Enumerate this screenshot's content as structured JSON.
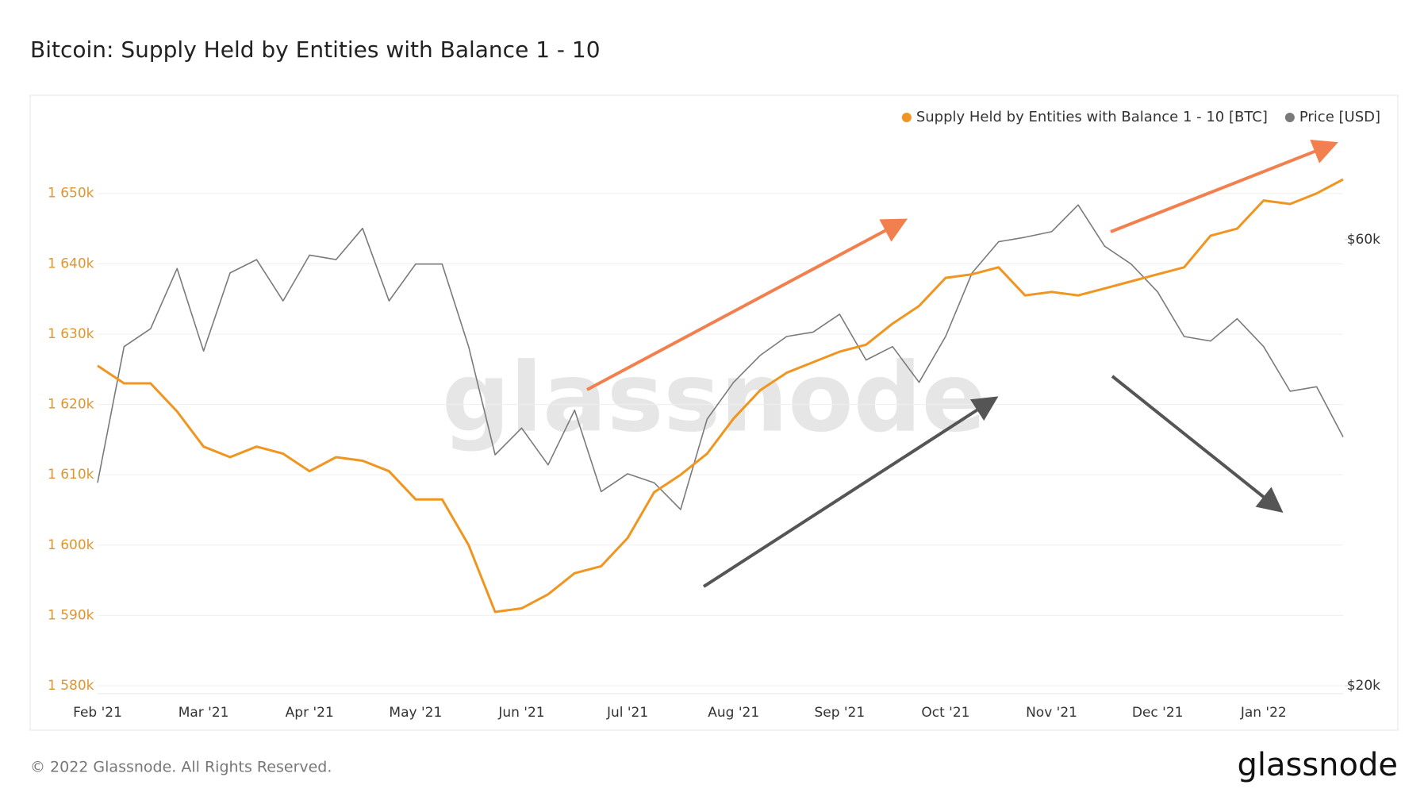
{
  "chart_data": {
    "type": "line",
    "title": "Bitcoin: Supply Held by Entities with Balance 1 - 10",
    "watermark": "glassnode",
    "footer": "© 2022 Glassnode. All Rights Reserved.",
    "logo": "glassnode",
    "categories": [
      "Feb '21",
      null,
      null,
      null,
      "Mar '21",
      null,
      null,
      null,
      "Apr '21",
      null,
      null,
      null,
      "May '21",
      null,
      null,
      null,
      "Jun '21",
      null,
      null,
      null,
      "Jul '21",
      null,
      null,
      null,
      "Aug '21",
      null,
      null,
      null,
      "Sep '21",
      null,
      null,
      null,
      "Oct '21",
      null,
      null,
      null,
      "Nov '21",
      null,
      null,
      null,
      "Dec '21",
      null,
      null,
      null,
      "Jan '22",
      null,
      null,
      null
    ],
    "series": [
      {
        "name": "Supply Held by Entities with Balance 1 - 10 [BTC]",
        "color": "#f0951f",
        "axis": "y",
        "values": [
          1625500,
          1623000,
          1623000,
          1619000,
          1614000,
          1612500,
          1614000,
          1613000,
          1610500,
          1612500,
          1612000,
          1610500,
          1606500,
          1606500,
          1600000,
          1590500,
          1591000,
          1593000,
          1596000,
          1597000,
          1601000,
          1607500,
          1610000,
          1613000,
          1618000,
          1622000,
          1624500,
          1626000,
          1627500,
          1628500,
          1631500,
          1634000,
          1638000,
          1638500,
          1639500,
          1635500,
          1636000,
          1635500,
          1636500,
          1637500,
          1638500,
          1639500,
          1644000,
          1645000,
          1649000,
          1648500,
          1650000,
          1652000
        ]
      },
      {
        "name": "Price [USD]",
        "color": "#7a7a7a",
        "axis": "y2",
        "values": [
          38200,
          50400,
          52000,
          57400,
          50000,
          57000,
          58200,
          54500,
          58600,
          58200,
          61000,
          54500,
          57800,
          57800,
          50400,
          40700,
          43100,
          39800,
          44700,
          37400,
          39000,
          38200,
          35800,
          43900,
          47200,
          49600,
          51300,
          51700,
          53300,
          49200,
          50400,
          47200,
          51300,
          57000,
          59800,
          60200,
          60700,
          63100,
          59400,
          57800,
          55300,
          51300,
          50900,
          52900,
          50400,
          46400,
          46800,
          42300
        ]
      }
    ],
    "ylim": [
      1580000,
      1659000
    ],
    "yticks": [
      {
        "value": 1580000,
        "label": "1 580k"
      },
      {
        "value": 1590000,
        "label": "1 590k"
      },
      {
        "value": 1600000,
        "label": "1 600k"
      },
      {
        "value": 1610000,
        "label": "1 610k"
      },
      {
        "value": 1620000,
        "label": "1 620k"
      },
      {
        "value": 1630000,
        "label": "1 630k"
      },
      {
        "value": 1640000,
        "label": "1 640k"
      },
      {
        "value": 1650000,
        "label": "1 650k"
      }
    ],
    "y2lim": [
      20000,
      69800
    ],
    "y2ticks": [
      {
        "value": 20000,
        "label": "$20k"
      },
      {
        "value": 60000,
        "label": "$60k"
      }
    ],
    "grid": true,
    "legend": "top-right"
  }
}
